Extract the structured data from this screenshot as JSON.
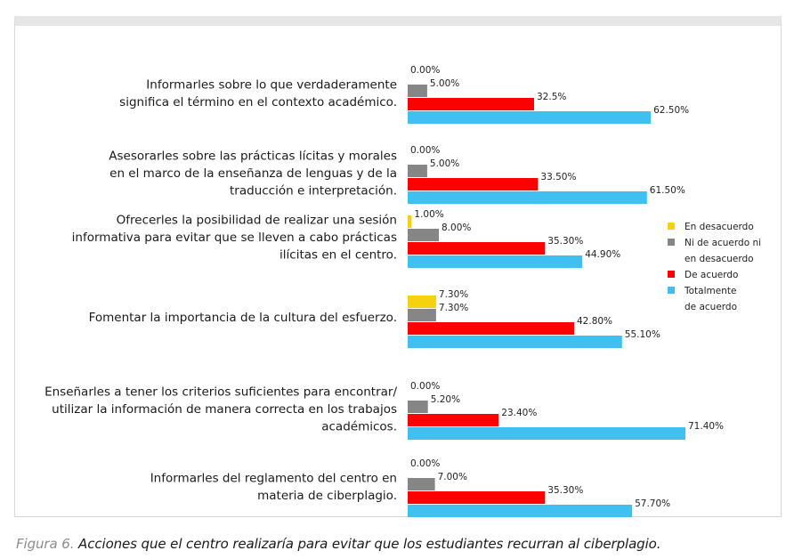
{
  "chart_data": {
    "type": "bar",
    "orientation": "horizontal",
    "categories": [
      [
        "Informarles sobre lo que verdaderamente",
        "significa el término en el contexto académico."
      ],
      [
        "Asesorarles sobre las prácticas lícitas y morales",
        "en el marco de la enseñanza de lenguas y de la",
        "traducción e interpretación."
      ],
      [
        "Ofrecerles la posibilidad de realizar una sesión",
        "informativa para evitar que se lleven a cabo prácticas",
        "ilícitas en el centro."
      ],
      [
        "Fomentar la importancia de la cultura del esfuerzo."
      ],
      [
        "Enseñarles a tener los criterios suficientes para encontrar/",
        "utilizar la información de manera correcta en los trabajos",
        "académicos."
      ],
      [
        "Informarles del reglamento del centro en",
        "materia de ciberplagio."
      ]
    ],
    "series": [
      {
        "name": "En desacuerdo",
        "color": "#f5d20f",
        "values": [
          0.0,
          0.0,
          1.0,
          7.3,
          0.0,
          0.0
        ],
        "labels": [
          "0.00%",
          "0.00%",
          "1.00%",
          "7.30%",
          "0.00%",
          "0.00%"
        ]
      },
      {
        "name": "Ni de acuerdo ni en desacuerdo",
        "legend_lines": [
          "Ni de acuerdo ni",
          "en desacuerdo"
        ],
        "color": "#868686",
        "values": [
          5.0,
          5.0,
          8.0,
          7.3,
          5.2,
          7.0
        ],
        "labels": [
          "5.00%",
          "5.00%",
          "8.00%",
          "7.30%",
          "5.20%",
          "7.00%"
        ]
      },
      {
        "name": "De acuerdo",
        "color": "#ff0000",
        "values": [
          32.5,
          33.5,
          35.3,
          42.8,
          23.4,
          35.3
        ],
        "labels": [
          "32.5%",
          "33.50%",
          "35.30%",
          "42.80%",
          "23.40%",
          "35.30%"
        ]
      },
      {
        "name": "Totalmente de acuerdo",
        "legend_lines": [
          "Totalmente",
          "de acuerdo"
        ],
        "color": "#3fc0f0",
        "values": [
          62.5,
          61.5,
          44.9,
          55.1,
          71.4,
          57.7
        ],
        "labels": [
          "62.50%",
          "61.50%",
          "44.90%",
          "55.10%",
          "71.40%",
          "57.70%"
        ]
      }
    ],
    "legend_position": "right",
    "xlim": [
      0,
      100
    ],
    "grid": false
  },
  "caption": {
    "figure": "Figura 6.",
    "text": " Acciones que el centro realizaría para evitar que los estudiantes recurran al ciberplagio."
  }
}
